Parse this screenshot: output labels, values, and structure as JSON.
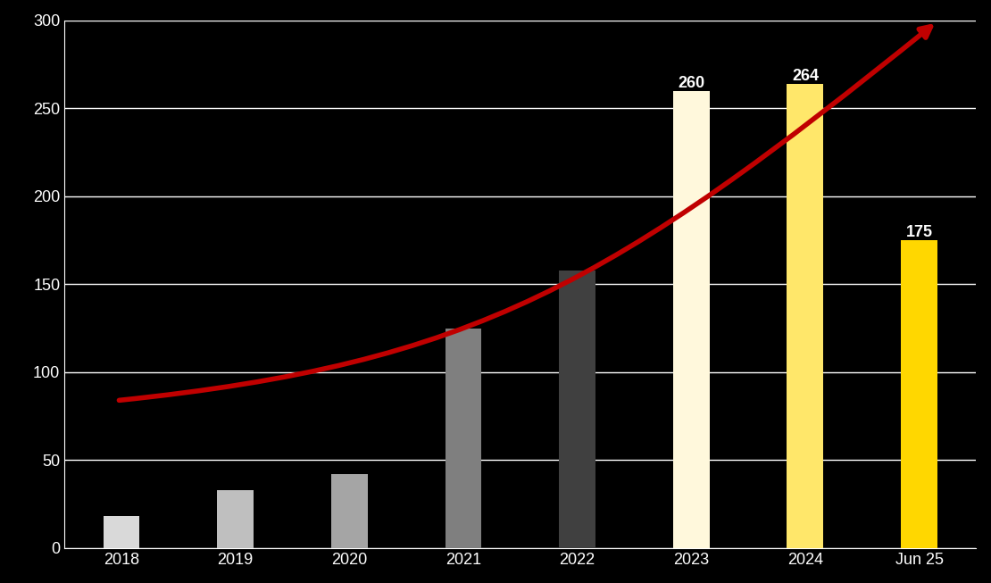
{
  "chart_data": {
    "type": "bar",
    "categories": [
      "2018",
      "2019",
      "2020",
      "2021",
      "2022",
      "2023",
      "2024",
      "Jun 25"
    ],
    "values": [
      18,
      33,
      42,
      125,
      158,
      260,
      264,
      175
    ],
    "value_labels": [
      null,
      null,
      null,
      null,
      null,
      "260",
      "264",
      "175"
    ],
    "colors": [
      "#d9d9d9",
      "#bfbfbf",
      "#a5a5a5",
      "#7f7f7f",
      "#404040",
      "#fff8dc",
      "#ffe76a",
      "#ffd700"
    ],
    "ylim": [
      0,
      300
    ],
    "yticks": [
      0,
      50,
      100,
      150,
      200,
      250,
      300
    ],
    "grid": true,
    "data_labels": true
  }
}
